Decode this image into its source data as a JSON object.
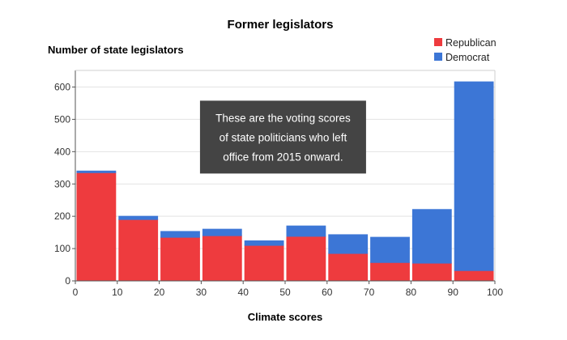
{
  "chart_data": {
    "type": "bar",
    "stacked": true,
    "title": "Former legislators",
    "ylabel": "Number of state legislators",
    "xlabel": "Climate scores",
    "xlim": [
      0,
      100
    ],
    "ylim": [
      0,
      650
    ],
    "x_ticks": [
      0,
      10,
      20,
      30,
      40,
      50,
      60,
      70,
      80,
      90,
      100
    ],
    "y_ticks": [
      0,
      100,
      200,
      300,
      400,
      500,
      600
    ],
    "grid": true,
    "legend_position": "top-right",
    "bins": [
      [
        0,
        10
      ],
      [
        10,
        20
      ],
      [
        20,
        30
      ],
      [
        30,
        40
      ],
      [
        40,
        50
      ],
      [
        50,
        60
      ],
      [
        60,
        70
      ],
      [
        70,
        80
      ],
      [
        80,
        90
      ],
      [
        90,
        100
      ]
    ],
    "series": [
      {
        "name": "Republican",
        "color": "#EE3B3E",
        "values": [
          335,
          190,
          135,
          140,
          110,
          138,
          85,
          57,
          55,
          32
        ]
      },
      {
        "name": "Democrat",
        "color": "#3C76D6",
        "values": [
          5,
          10,
          18,
          20,
          14,
          32,
          58,
          78,
          166,
          584
        ]
      }
    ],
    "annotation": {
      "lines": [
        "These are the voting scores",
        "of state politicians who left",
        "office from 2015 onward."
      ],
      "x_center": 49.5,
      "y_center": 445
    }
  }
}
